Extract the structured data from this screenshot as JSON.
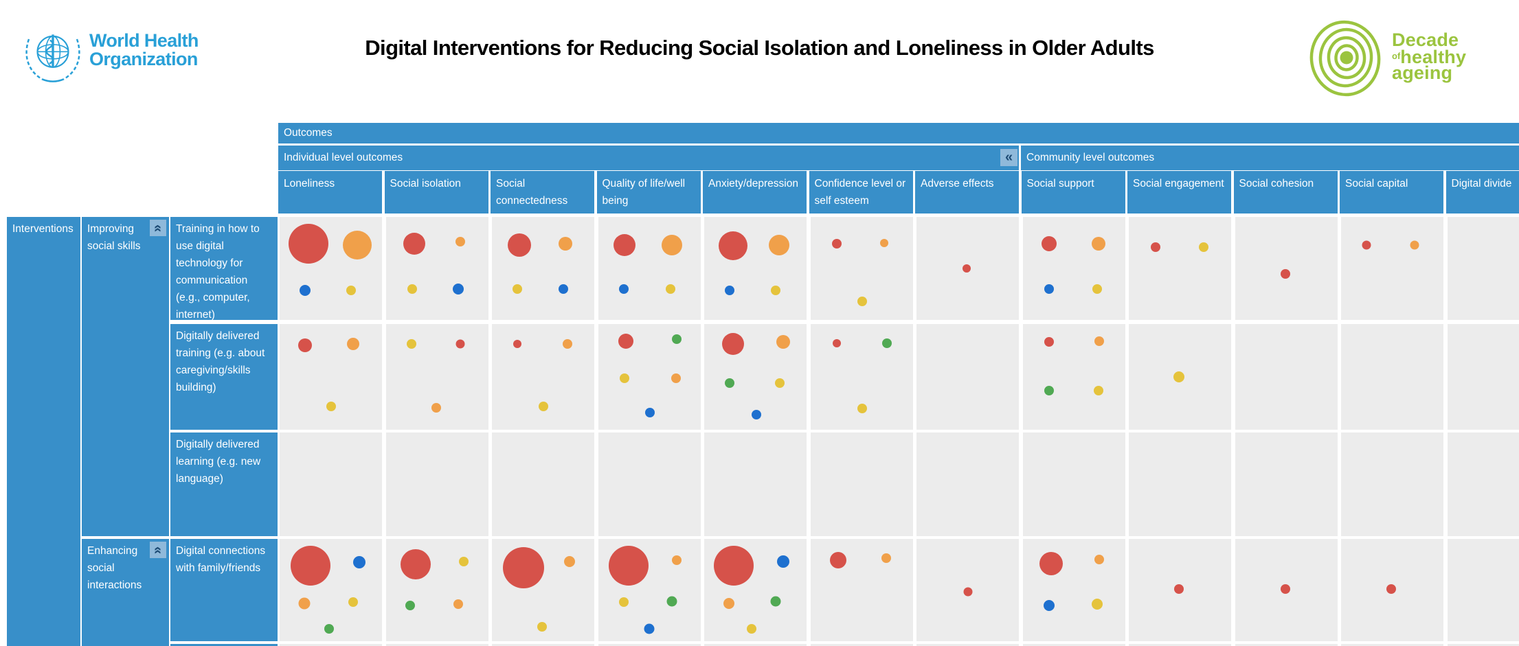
{
  "header": {
    "who_line1": "World Health",
    "who_line2": "Organization",
    "title": "Digital Interventions for Reducing Social Isolation and Loneliness in Older Adults",
    "decade": {
      "line1": "Decade",
      "of": "of",
      "line2": "healthy",
      "line3": "ageing"
    }
  },
  "table": {
    "outcomes_label": "Outcomes",
    "groups": [
      {
        "label": "Individual level outcomes",
        "col_span": 7
      },
      {
        "label": "Community level outcomes",
        "col_span": 5
      }
    ],
    "collapse_left_glyph": "«",
    "collapse_up_glyph": "«",
    "columns": [
      "Loneliness",
      "Social isolation",
      "Social connectedness",
      "Quality of life/well being",
      "Anxiety/depression",
      "Confidence level or self esteem",
      "Adverse effects",
      "Social support",
      "Social engagement",
      "Social cohesion",
      "Social capital",
      "Digital divide"
    ],
    "interventions_label": "Interventions",
    "categories": [
      {
        "label": "Improving social skills",
        "row_start": 0,
        "row_end": 2
      },
      {
        "label": "Enhancing social interactions",
        "row_start": 3,
        "row_end": 4
      }
    ],
    "rows": [
      {
        "label": "Training in how to use digital technology for communication (e.g., computer, internet)",
        "cells": [
          [
            {
              "c": "red",
              "r": 29,
              "x": 28,
              "y": 26
            },
            {
              "c": "orange",
              "r": 21,
              "x": 76,
              "y": 27
            },
            {
              "c": "blue",
              "r": 8,
              "x": 25,
              "y": 71
            },
            {
              "c": "yellow",
              "r": 7,
              "x": 70,
              "y": 71
            }
          ],
          [
            {
              "c": "red",
              "r": 16,
              "x": 28,
              "y": 26
            },
            {
              "c": "orange",
              "r": 7,
              "x": 73,
              "y": 24
            },
            {
              "c": "yellow",
              "r": 7,
              "x": 26,
              "y": 70
            },
            {
              "c": "blue",
              "r": 8,
              "x": 71,
              "y": 70
            }
          ],
          [
            {
              "c": "red",
              "r": 17,
              "x": 27,
              "y": 27
            },
            {
              "c": "orange",
              "r": 10,
              "x": 72,
              "y": 26
            },
            {
              "c": "yellow",
              "r": 7,
              "x": 25,
              "y": 70
            },
            {
              "c": "blue",
              "r": 7,
              "x": 70,
              "y": 70
            }
          ],
          [
            {
              "c": "red",
              "r": 16,
              "x": 26,
              "y": 27
            },
            {
              "c": "orange",
              "r": 15,
              "x": 72,
              "y": 27
            },
            {
              "c": "blue",
              "r": 7,
              "x": 25,
              "y": 70
            },
            {
              "c": "yellow",
              "r": 7,
              "x": 71,
              "y": 70
            }
          ],
          [
            {
              "c": "red",
              "r": 21,
              "x": 28,
              "y": 28
            },
            {
              "c": "orange",
              "r": 15,
              "x": 73,
              "y": 27
            },
            {
              "c": "blue",
              "r": 7,
              "x": 25,
              "y": 71
            },
            {
              "c": "yellow",
              "r": 7,
              "x": 70,
              "y": 71
            }
          ],
          [
            {
              "c": "red",
              "r": 7,
              "x": 26,
              "y": 26
            },
            {
              "c": "orange",
              "r": 6,
              "x": 72,
              "y": 25
            },
            {
              "c": "yellow",
              "r": 7,
              "x": 51,
              "y": 82
            }
          ],
          [
            {
              "c": "red",
              "r": 6,
              "x": 49,
              "y": 50
            }
          ],
          [
            {
              "c": "red",
              "r": 11,
              "x": 26,
              "y": 26
            },
            {
              "c": "orange",
              "r": 10,
              "x": 74,
              "y": 26
            },
            {
              "c": "blue",
              "r": 7,
              "x": 26,
              "y": 70
            },
            {
              "c": "yellow",
              "r": 7,
              "x": 73,
              "y": 70
            }
          ],
          [
            {
              "c": "red",
              "r": 7,
              "x": 26,
              "y": 29
            },
            {
              "c": "yellow",
              "r": 7,
              "x": 73,
              "y": 29
            }
          ],
          [
            {
              "c": "red",
              "r": 7,
              "x": 49,
              "y": 55
            }
          ],
          [
            {
              "c": "red",
              "r": 6.5,
              "x": 25,
              "y": 27
            },
            {
              "c": "orange",
              "r": 6.5,
              "x": 72,
              "y": 27
            }
          ],
          []
        ]
      },
      {
        "label": "Digitally delivered training (e.g. about caregiving/skills building)",
        "cells": [
          [
            {
              "c": "red",
              "r": 10,
              "x": 25,
              "y": 20
            },
            {
              "c": "orange",
              "r": 9,
              "x": 72,
              "y": 19
            },
            {
              "c": "yellow",
              "r": 7,
              "x": 50,
              "y": 78
            }
          ],
          [
            {
              "c": "yellow",
              "r": 7,
              "x": 25,
              "y": 19
            },
            {
              "c": "red",
              "r": 6.5,
              "x": 73,
              "y": 19
            },
            {
              "c": "orange",
              "r": 7,
              "x": 49,
              "y": 79
            }
          ],
          [
            {
              "c": "red",
              "r": 6,
              "x": 25,
              "y": 19
            },
            {
              "c": "orange",
              "r": 7,
              "x": 74,
              "y": 19
            },
            {
              "c": "yellow",
              "r": 7,
              "x": 50,
              "y": 78
            }
          ],
          [
            {
              "c": "red",
              "r": 11,
              "x": 27,
              "y": 16
            },
            {
              "c": "green",
              "r": 7,
              "x": 77,
              "y": 14
            },
            {
              "c": "yellow",
              "r": 7,
              "x": 26,
              "y": 51
            },
            {
              "c": "orange",
              "r": 7,
              "x": 76,
              "y": 51
            },
            {
              "c": "blue",
              "r": 7,
              "x": 51,
              "y": 84
            }
          ],
          [
            {
              "c": "red",
              "r": 16,
              "x": 28,
              "y": 19
            },
            {
              "c": "orange",
              "r": 10,
              "x": 77,
              "y": 17
            },
            {
              "c": "green",
              "r": 7,
              "x": 25,
              "y": 56
            },
            {
              "c": "yellow",
              "r": 7,
              "x": 74,
              "y": 56
            },
            {
              "c": "blue",
              "r": 7,
              "x": 51,
              "y": 86
            }
          ],
          [
            {
              "c": "red",
              "r": 6,
              "x": 26,
              "y": 18
            },
            {
              "c": "green",
              "r": 7,
              "x": 75,
              "y": 18
            },
            {
              "c": "yellow",
              "r": 7,
              "x": 51,
              "y": 80
            }
          ],
          [],
          [
            {
              "c": "red",
              "r": 7,
              "x": 26,
              "y": 17
            },
            {
              "c": "orange",
              "r": 7,
              "x": 75,
              "y": 16
            },
            {
              "c": "green",
              "r": 7,
              "x": 26,
              "y": 63
            },
            {
              "c": "yellow",
              "r": 7,
              "x": 74,
              "y": 63
            }
          ],
          [
            {
              "c": "yellow",
              "r": 8,
              "x": 49,
              "y": 50
            }
          ],
          [],
          [],
          []
        ]
      },
      {
        "label": "Digitally delivered learning (e.g. new language)",
        "cells": [
          [],
          [],
          [],
          [],
          [],
          [],
          [],
          [],
          [],
          [],
          [],
          []
        ]
      },
      {
        "label": "Digital connections with family/friends",
        "cells": [
          [
            {
              "c": "red",
              "r": 29,
              "x": 30,
              "y": 26
            },
            {
              "c": "blue",
              "r": 9,
              "x": 78,
              "y": 23
            },
            {
              "c": "orange",
              "r": 8.5,
              "x": 24,
              "y": 63
            },
            {
              "c": "yellow",
              "r": 7,
              "x": 72,
              "y": 62
            },
            {
              "c": "green",
              "r": 7,
              "x": 48,
              "y": 88
            }
          ],
          [
            {
              "c": "red",
              "r": 22,
              "x": 29,
              "y": 25
            },
            {
              "c": "yellow",
              "r": 7,
              "x": 76,
              "y": 22
            },
            {
              "c": "green",
              "r": 7,
              "x": 24,
              "y": 65
            },
            {
              "c": "orange",
              "r": 7,
              "x": 71,
              "y": 64
            }
          ],
          [
            {
              "c": "red",
              "r": 30,
              "x": 31,
              "y": 28
            },
            {
              "c": "orange",
              "r": 8,
              "x": 76,
              "y": 22
            },
            {
              "c": "yellow",
              "r": 7,
              "x": 49,
              "y": 86
            }
          ],
          [
            {
              "c": "red",
              "r": 29,
              "x": 30,
              "y": 26
            },
            {
              "c": "orange",
              "r": 7,
              "x": 77,
              "y": 21
            },
            {
              "c": "yellow",
              "r": 7,
              "x": 25,
              "y": 62
            },
            {
              "c": "green",
              "r": 7.5,
              "x": 72,
              "y": 61
            },
            {
              "c": "blue",
              "r": 7.5,
              "x": 50,
              "y": 88
            }
          ],
          [
            {
              "c": "red",
              "r": 29,
              "x": 29,
              "y": 26
            },
            {
              "c": "blue",
              "r": 9,
              "x": 77,
              "y": 22
            },
            {
              "c": "orange",
              "r": 8,
              "x": 24,
              "y": 63
            },
            {
              "c": "green",
              "r": 7.5,
              "x": 70,
              "y": 61
            },
            {
              "c": "yellow",
              "r": 7,
              "x": 46,
              "y": 88
            }
          ],
          [
            {
              "c": "red",
              "r": 12,
              "x": 27,
              "y": 21
            },
            {
              "c": "orange",
              "r": 7,
              "x": 74,
              "y": 19
            }
          ],
          [
            {
              "c": "red",
              "r": 6.5,
              "x": 50,
              "y": 52
            }
          ],
          [
            {
              "c": "red",
              "r": 17,
              "x": 28,
              "y": 24
            },
            {
              "c": "orange",
              "r": 7,
              "x": 75,
              "y": 20
            },
            {
              "c": "blue",
              "r": 8,
              "x": 26,
              "y": 65
            },
            {
              "c": "yellow",
              "r": 8,
              "x": 73,
              "y": 64
            }
          ],
          [
            {
              "c": "red",
              "r": 7,
              "x": 49,
              "y": 49
            }
          ],
          [
            {
              "c": "red",
              "r": 7,
              "x": 49,
              "y": 49
            }
          ],
          [
            {
              "c": "red",
              "r": 7,
              "x": 49,
              "y": 49
            }
          ],
          []
        ]
      },
      {
        "label": "",
        "cells": [
          [],
          [],
          [],
          [],
          [],
          [],
          [],
          [],
          [],
          [],
          [],
          []
        ]
      }
    ]
  },
  "colors": {
    "header_blue": "#388fc9",
    "button_blue": "#8fb9da",
    "chevron_navy": "#1d4b74",
    "cell_bg": "#ececec",
    "who_blue": "#29a0d7",
    "decade_green": "#9bc43f",
    "bubble": {
      "red": "#d6524a",
      "orange": "#f0a04a",
      "yellow": "#e5c33c",
      "blue": "#1e70cf",
      "green": "#50a953"
    }
  }
}
